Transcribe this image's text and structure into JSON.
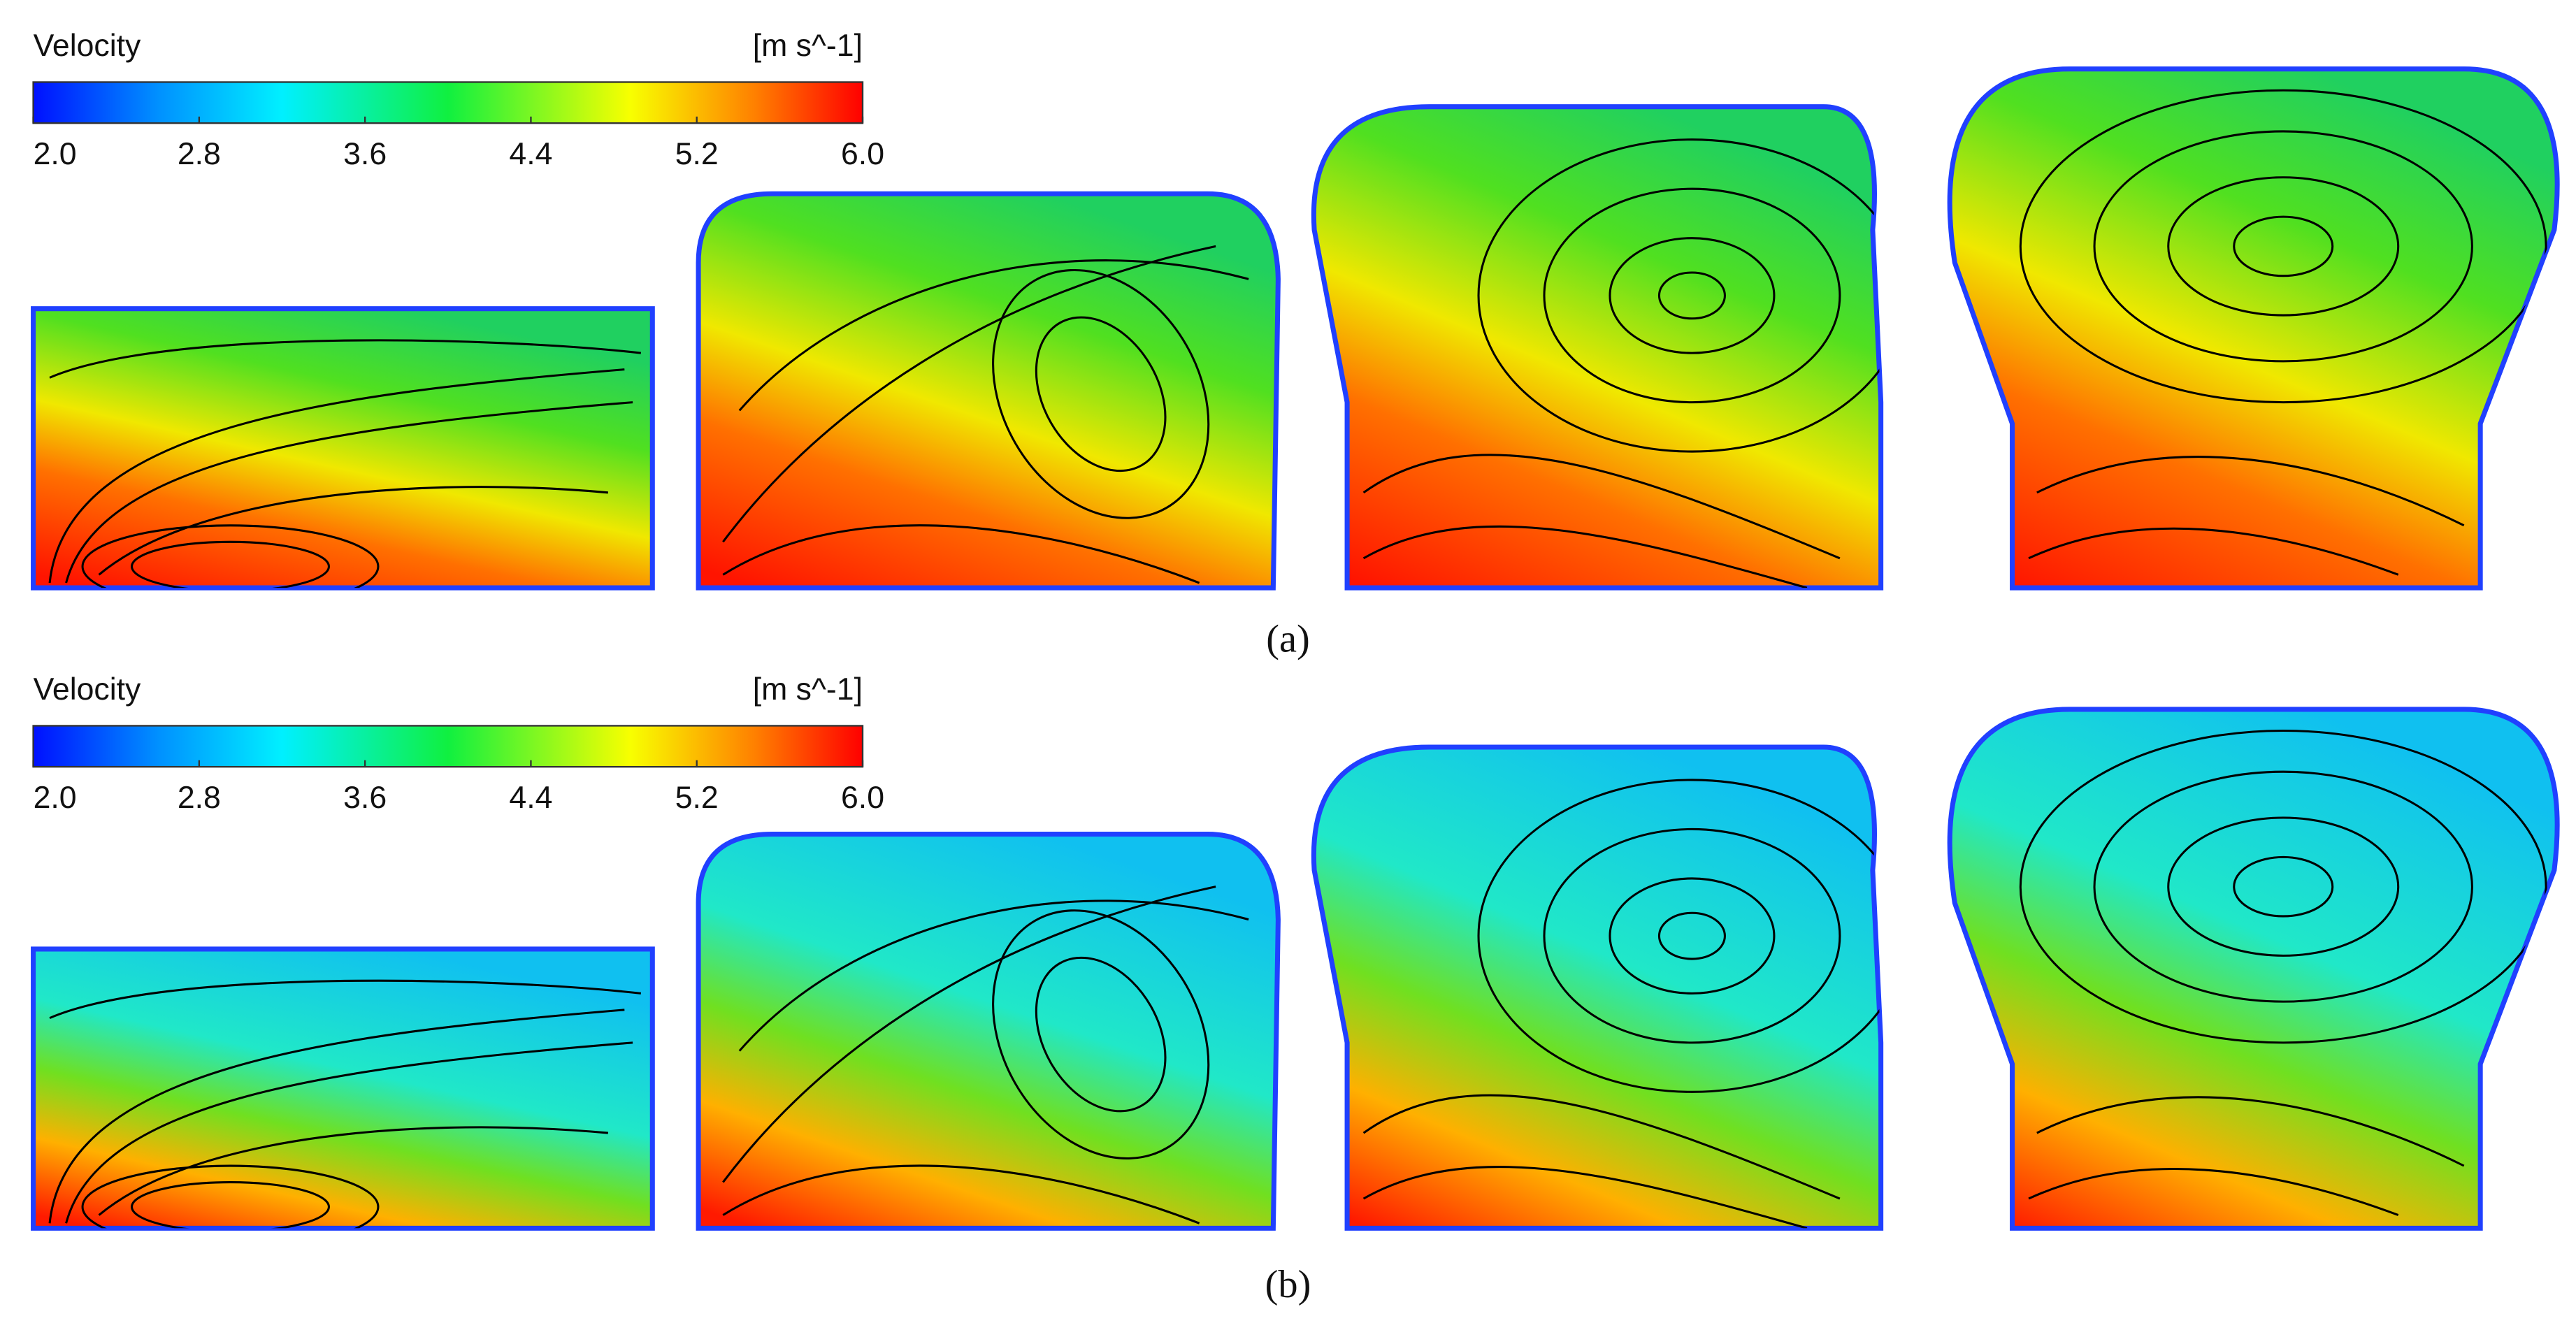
{
  "panels": [
    {
      "colorbar": {
        "title": "Velocity",
        "unit": "[m s^-1]",
        "lim": [
          2,
          6
        ],
        "ticks": [
          {
            "value": 2,
            "label": "2.0"
          },
          {
            "value": 2.8,
            "label": "2.8"
          },
          {
            "value": 3.6,
            "label": "3.6"
          },
          {
            "value": 4.4,
            "label": "4.4"
          },
          {
            "value": 5.2,
            "label": "5.2"
          },
          {
            "value": 6,
            "label": "6.0"
          }
        ]
      },
      "caption": "(a)"
    },
    {
      "colorbar": {
        "title": "Velocity",
        "unit": "[m s^-1]",
        "lim": [
          2,
          6
        ],
        "ticks": [
          {
            "value": 2,
            "label": "2.0"
          },
          {
            "value": 2.8,
            "label": "2.8"
          },
          {
            "value": 3.6,
            "label": "3.6"
          },
          {
            "value": 4.4,
            "label": "4.4"
          },
          {
            "value": 5.2,
            "label": "5.2"
          },
          {
            "value": 6,
            "label": "6.0"
          }
        ]
      },
      "caption": "(b)"
    }
  ]
}
